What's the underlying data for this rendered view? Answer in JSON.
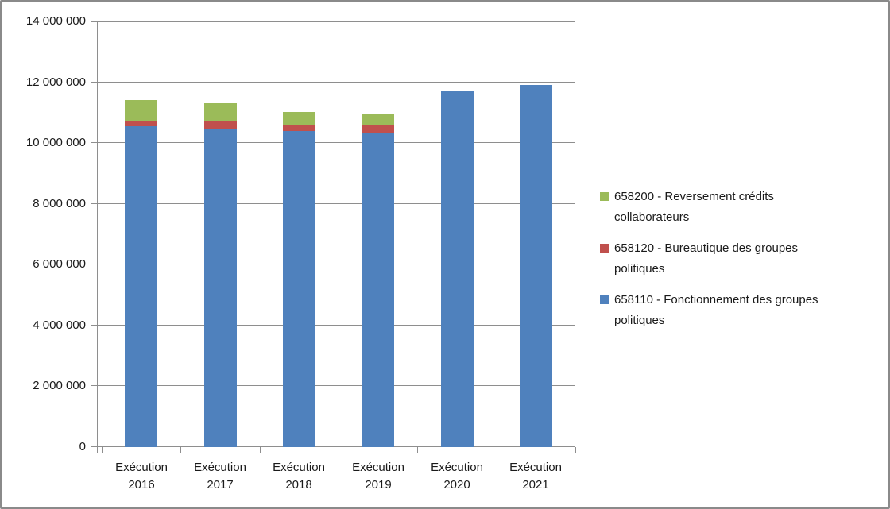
{
  "colors": {
    "axis": "#8e8e8e",
    "grid": "#8e8e8e",
    "frame_border": "#8a8a8a",
    "text": "#1a1a1a",
    "background": "#ffffff"
  },
  "chart_data": {
    "type": "bar",
    "stacked": true,
    "title": "",
    "xlabel": "",
    "ylabel": "",
    "categories": [
      "Exécution 2016",
      "Exécution 2017",
      "Exécution 2018",
      "Exécution 2019",
      "Exécution 2020",
      "Exécution 2021"
    ],
    "series": [
      {
        "name": "658110 - Fonctionnement des groupes politiques",
        "legend_lines": [
          "658110 - Fonctionnement des groupes",
          "politiques"
        ],
        "color": "#4F81BD",
        "values": [
          10560000,
          10440000,
          10400000,
          10350000,
          11710000,
          11920000
        ]
      },
      {
        "name": "658120 - Bureautique des groupes politiques",
        "legend_lines": [
          "658120 - Bureautique des groupes",
          "politiques"
        ],
        "color": "#C0504D",
        "values": [
          180000,
          260000,
          180000,
          270000,
          0,
          0
        ]
      },
      {
        "name": "658200 - Reversement crédits collaborateurs",
        "legend_lines": [
          "658200 - Reversement crédits",
          "collaborateurs"
        ],
        "color": "#9BBB59",
        "values": [
          690000,
          610000,
          450000,
          370000,
          0,
          0
        ]
      }
    ],
    "legend_order": [
      2,
      1,
      0
    ],
    "legend_position": "right",
    "grid": true,
    "ylim": [
      0,
      14000000
    ],
    "ytick_step": 2000000,
    "ytick_labels": [
      "0",
      "2 000 000",
      "4 000 000",
      "6 000 000",
      "8 000 000",
      "10 000 000",
      "12 000 000",
      "14 000 000"
    ]
  }
}
